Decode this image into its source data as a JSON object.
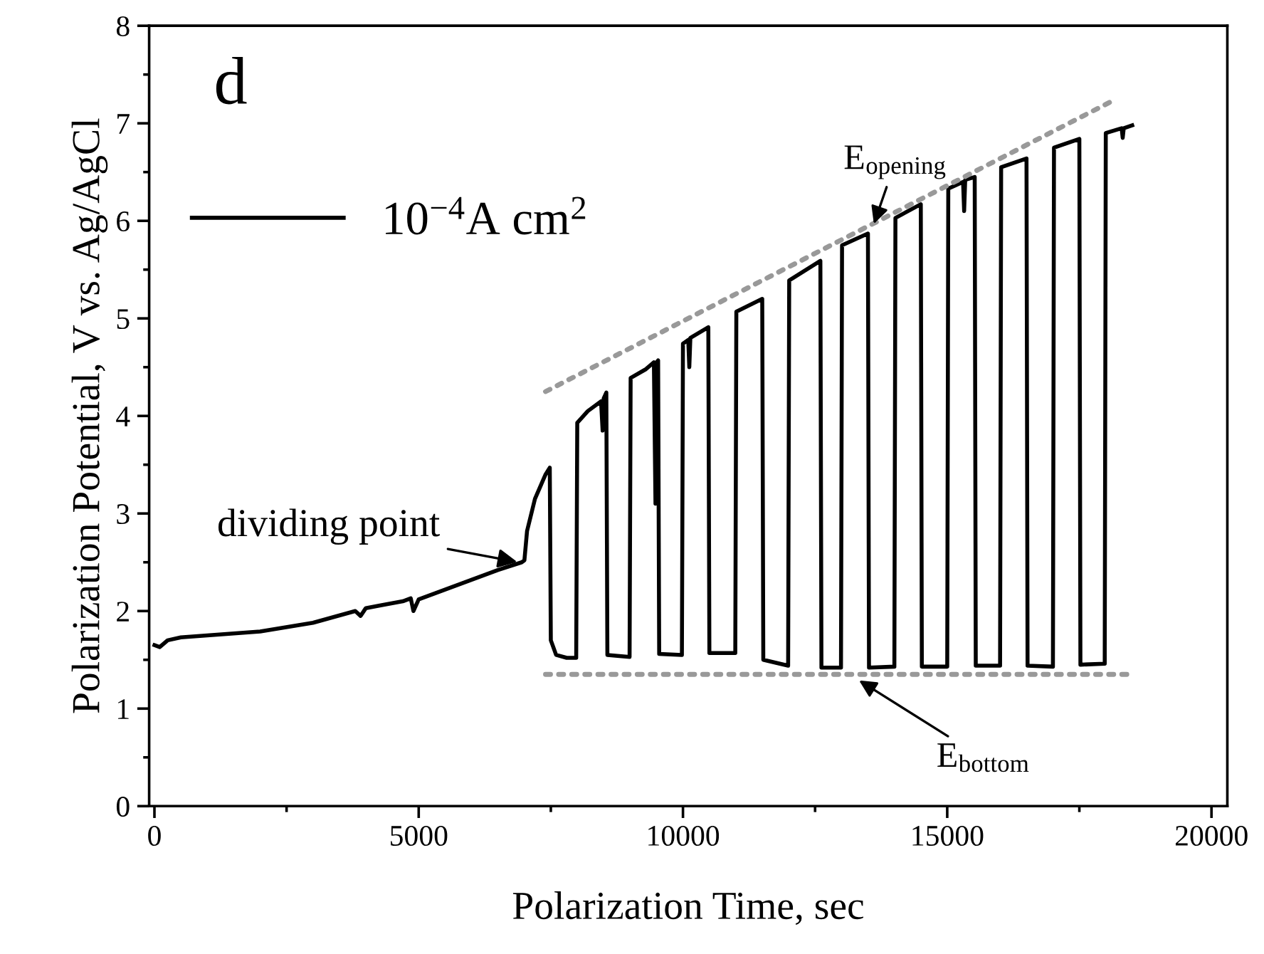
{
  "chart_data": {
    "type": "line",
    "xlabel": "Polarization Time, sec",
    "ylabel": "Polarization Potential, V vs. Ag/AgCl",
    "xlim": [
      -100,
      20300
    ],
    "xticks": [
      0,
      5000,
      10000,
      15000,
      20000
    ],
    "ylim": [
      0,
      8
    ],
    "yticks": [
      0,
      1,
      2,
      3,
      4,
      5,
      6,
      7,
      8
    ],
    "legend": "top left",
    "grid": false,
    "line_style": "solid",
    "marker": "none",
    "series": [
      {
        "name": "10$^{−4}$A cm$^{2}$",
        "color": "#000000",
        "x": [
          0,
          100,
          250,
          500,
          1000,
          2000,
          3000,
          3800,
          3900,
          4000,
          4300,
          4700,
          4850,
          4900,
          5000,
          5500,
          6000,
          6500,
          6950,
          7000,
          7050,
          7200,
          7400,
          7480,
          7500,
          7600,
          7800,
          7980,
          8000,
          8200,
          8450,
          8480,
          8500,
          8550,
          8570,
          8990,
          9010,
          9300,
          9450,
          9480,
          9500,
          9530,
          9550,
          9980,
          10000,
          10100,
          10120,
          10140,
          10480,
          10500,
          10990,
          11010,
          11500,
          11520,
          11990,
          12010,
          12600,
          12620,
          12990,
          13010,
          13500,
          13520,
          14000,
          14020,
          14500,
          14520,
          15000,
          15020,
          15300,
          15320,
          15340,
          15520,
          15540,
          16000,
          16020,
          16500,
          16520,
          17000,
          17020,
          17500,
          17520,
          17980,
          18000,
          18300,
          18320,
          18340,
          18500
        ],
        "values": [
          1.65,
          1.63,
          1.7,
          1.73,
          1.75,
          1.79,
          1.88,
          2.0,
          1.95,
          2.03,
          2.06,
          2.1,
          2.13,
          2.0,
          2.12,
          2.22,
          2.32,
          2.42,
          2.5,
          2.52,
          2.82,
          3.15,
          3.4,
          3.47,
          1.7,
          1.55,
          1.52,
          1.52,
          3.93,
          4.05,
          4.15,
          3.85,
          4.18,
          4.24,
          1.55,
          1.53,
          4.39,
          4.48,
          4.55,
          3.1,
          4.55,
          4.57,
          1.56,
          1.55,
          4.74,
          4.78,
          4.5,
          4.8,
          4.91,
          1.57,
          1.57,
          5.07,
          5.2,
          1.5,
          1.44,
          5.39,
          5.59,
          1.42,
          1.42,
          5.75,
          5.87,
          1.42,
          1.43,
          6.03,
          6.17,
          1.43,
          1.43,
          6.33,
          6.4,
          6.1,
          6.42,
          6.45,
          1.44,
          1.44,
          6.55,
          6.64,
          1.44,
          1.43,
          6.75,
          6.84,
          1.45,
          1.46,
          6.9,
          6.95,
          6.85,
          6.95,
          6.98
        ]
      },
      {
        "type": "line",
        "color": "#999999",
        "line_style": "dotted",
        "x": [
          7400,
          18200
        ],
        "values": [
          4.25,
          7.25
        ]
      },
      {
        "type": "line",
        "color": "#999999",
        "line_style": "dotted",
        "x": [
          7400,
          18500
        ],
        "values": [
          1.35,
          1.35
        ]
      }
    ],
    "annotations": [
      "d",
      {
        "text": "dividing point",
        "x": 6900,
        "y": 2.5
      },
      {
        "text": "E$_{opening}$",
        "x": 13600,
        "y": 5.95
      },
      {
        "text": "E$_{bottom}$",
        "x": 13300,
        "y": 1.3
      }
    ]
  }
}
